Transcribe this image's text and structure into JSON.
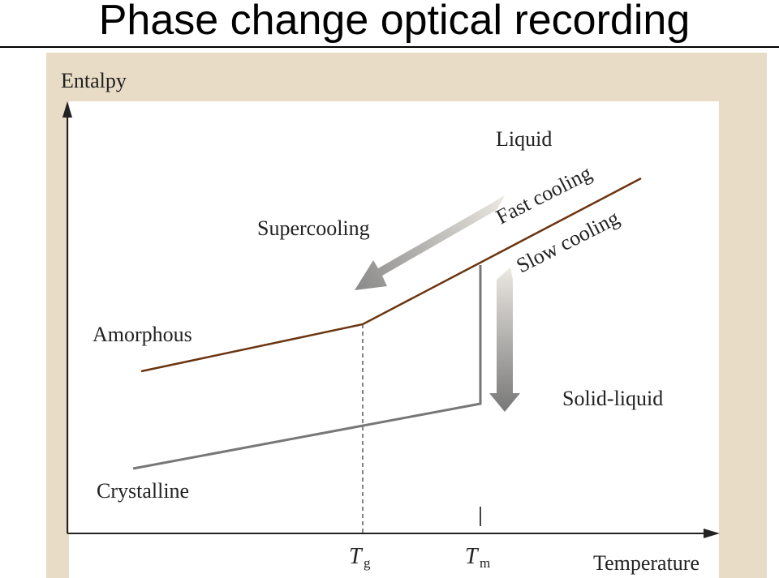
{
  "slide": {
    "title": "Phase change optical recording"
  },
  "diagram": {
    "y_axis_label": "Entalpy",
    "x_axis_label": "Temperature",
    "tick_tg_symbol": "T",
    "tick_tg_sub": "g",
    "tick_tm_symbol": "T",
    "tick_tm_sub": "m",
    "labels": {
      "liquid": "Liquid",
      "supercooling": "Supercooling",
      "fast_cooling": "Fast cooling",
      "slow_cooling": "Slow cooling",
      "amorphous": "Amorphous",
      "solid_liquid": "Solid-liquid",
      "crystalline": "Crystalline"
    },
    "colors": {
      "background": "#e9dcc6",
      "plot_area": "#ffffff",
      "amorphous_line": "#6b3410",
      "crystalline_line": "#777777",
      "arrow_gradient_dark": "#8a8a8a",
      "arrow_gradient_light": "#ece8e2"
    }
  }
}
